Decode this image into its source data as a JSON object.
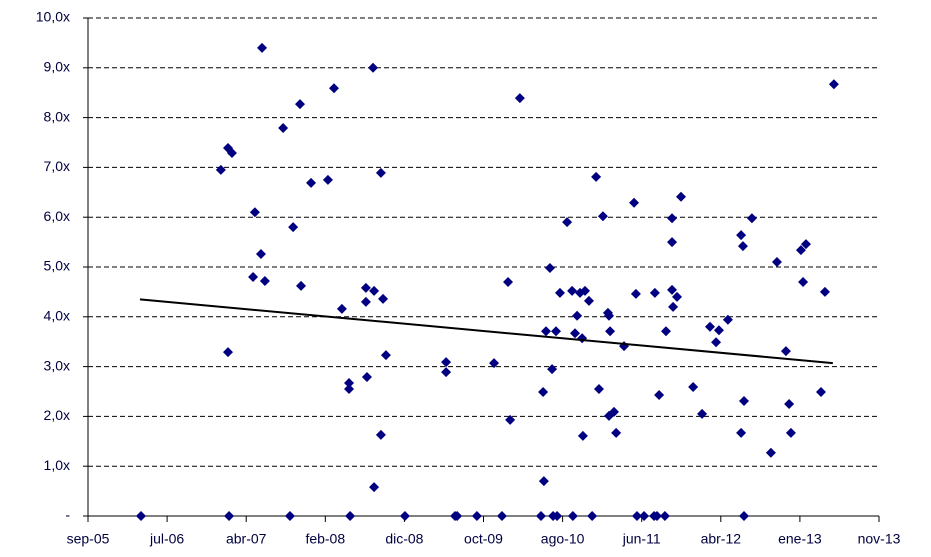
{
  "chart_data": {
    "type": "scatter",
    "x": [
      38801,
      39104,
      39135,
      39131,
      39146,
      39131,
      39260,
      39233,
      39256,
      39226,
      39271,
      39340,
      39366,
      39378,
      39404,
      39408,
      39446,
      39510,
      39533,
      39563,
      39590,
      39590,
      39594,
      39654,
      39654,
      39658,
      39681,
      39685,
      39685,
      39711,
      39719,
      39711,
      39730,
      39802,
      39958,
      39958,
      39992,
      40000,
      40075,
      40140,
      40170,
      40193,
      40201,
      40238,
      40318,
      40326,
      40329,
      40337,
      40352,
      40360,
      40364,
      40375,
      40379,
      40390,
      40417,
      40436,
      40439,
      40447,
      40455,
      40466,
      40474,
      40477,
      40485,
      40500,
      40512,
      40527,
      40538,
      40553,
      40572,
      40576,
      40576,
      40580,
      40595,
      40603,
      40633,
      40671,
      40678,
      40682,
      40709,
      40747,
      40750,
      40758,
      40766,
      40788,
      40792,
      40815,
      40815,
      40815,
      40819,
      40834,
      40849,
      40895,
      40929,
      40959,
      40982,
      40993,
      41027,
      41077,
      41084,
      41077,
      41088,
      41088,
      41118,
      41190,
      41213,
      41247,
      41259,
      41266,
      41304,
      41323,
      41312,
      41380,
      41395,
      41429
    ],
    "values": [
      0,
      6.95,
      0,
      3.29,
      7.29,
      7.39,
      9.4,
      6.1,
      5.26,
      4.8,
      4.72,
      7.79,
      0,
      5.8,
      8.27,
      4.62,
      6.69,
      6.75,
      8.59,
      4.16,
      2.67,
      2.55,
      0,
      4.58,
      4.3,
      2.79,
      9.0,
      4.52,
      0.58,
      6.89,
      4.36,
      1.63,
      3.23,
      0,
      3.09,
      2.89,
      0,
      0,
      0,
      3.07,
      0,
      4.7,
      1.93,
      8.39,
      0,
      2.49,
      0.7,
      3.71,
      4.98,
      2.95,
      0,
      3.71,
      0,
      4.48,
      5.9,
      4.52,
      0,
      3.67,
      4.02,
      4.48,
      3.57,
      1.61,
      4.52,
      4.32,
      0,
      6.81,
      2.55,
      6.02,
      4.08,
      2.01,
      4.02,
      3.71,
      2.09,
      1.67,
      3.41,
      6.29,
      4.46,
      0,
      0,
      0,
      4.48,
      0,
      2.43,
      0,
      3.71,
      5.98,
      5.5,
      4.54,
      4.2,
      4.4,
      6.41,
      2.59,
      2.05,
      3.8,
      3.49,
      3.73,
      3.94,
      5.64,
      5.42,
      1.67,
      2.31,
      0,
      5.98,
      1.27,
      5.1,
      3.31,
      2.25,
      1.67,
      5.34,
      5.46,
      4.7,
      2.49,
      4.5,
      8.67
    ],
    "color": "#000080",
    "trendline": {
      "x": [
        38797,
        41425
      ],
      "values": [
        4.35,
        3.07
      ],
      "color": "#000000"
    },
    "xlim": [
      38600,
      41600
    ],
    "xticks": [
      {
        "value": 38600,
        "label": "sep-05"
      },
      {
        "value": 38900,
        "label": "jul-06"
      },
      {
        "value": 39200,
        "label": "abr-07"
      },
      {
        "value": 39500,
        "label": "feb-08"
      },
      {
        "value": 39800,
        "label": "dic-08"
      },
      {
        "value": 40100,
        "label": "oct-09"
      },
      {
        "value": 40400,
        "label": "ago-10"
      },
      {
        "value": 40700,
        "label": "jun-11"
      },
      {
        "value": 41000,
        "label": "abr-12"
      },
      {
        "value": 41300,
        "label": "ene-13"
      },
      {
        "value": 41600,
        "label": "nov-13"
      }
    ],
    "ylim": [
      0,
      10
    ],
    "yticks": [
      {
        "value": 0,
        "label": "-"
      },
      {
        "value": 1,
        "label": "1,0x"
      },
      {
        "value": 2,
        "label": "2,0x"
      },
      {
        "value": 3,
        "label": "3,0x"
      },
      {
        "value": 4,
        "label": "4,0x"
      },
      {
        "value": 5,
        "label": "5,0x"
      },
      {
        "value": 6,
        "label": "6,0x"
      },
      {
        "value": 7,
        "label": "7,0x"
      },
      {
        "value": 8,
        "label": "8,0x"
      },
      {
        "value": 9,
        "label": "9,0x"
      },
      {
        "value": 10,
        "label": "10,0x"
      }
    ],
    "grid": true
  }
}
